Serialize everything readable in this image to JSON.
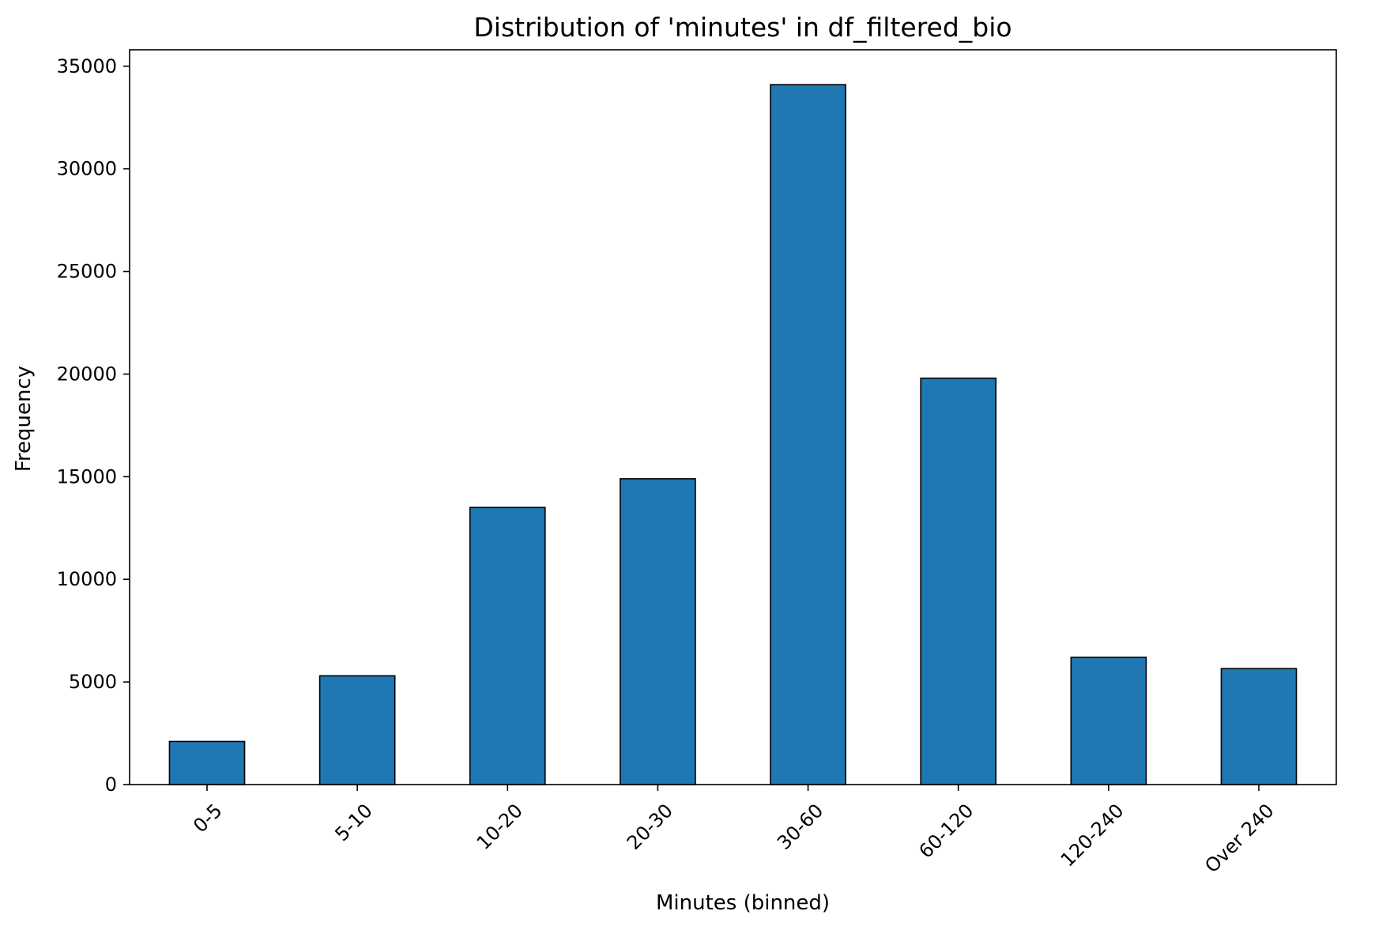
{
  "chart_data": {
    "type": "bar",
    "title": "Distribution of 'minutes' in df_filtered_bio",
    "xlabel": "Minutes (binned)",
    "ylabel": "Frequency",
    "categories": [
      "0-5",
      "5-10",
      "10-20",
      "20-30",
      "30-60",
      "60-120",
      "120-240",
      "Over 240"
    ],
    "values": [
      2100,
      5300,
      13500,
      14900,
      34100,
      19800,
      6200,
      5650
    ],
    "ylim": [
      0,
      35800
    ],
    "yticks": [
      0,
      5000,
      10000,
      15000,
      20000,
      25000,
      30000,
      35000
    ],
    "ytick_labels": [
      "0",
      "5000",
      "10000",
      "15000",
      "20000",
      "25000",
      "30000",
      "35000"
    ],
    "grid": false,
    "legend": "none",
    "bar_color": "#1f77b4",
    "edge_color": "#000000"
  }
}
